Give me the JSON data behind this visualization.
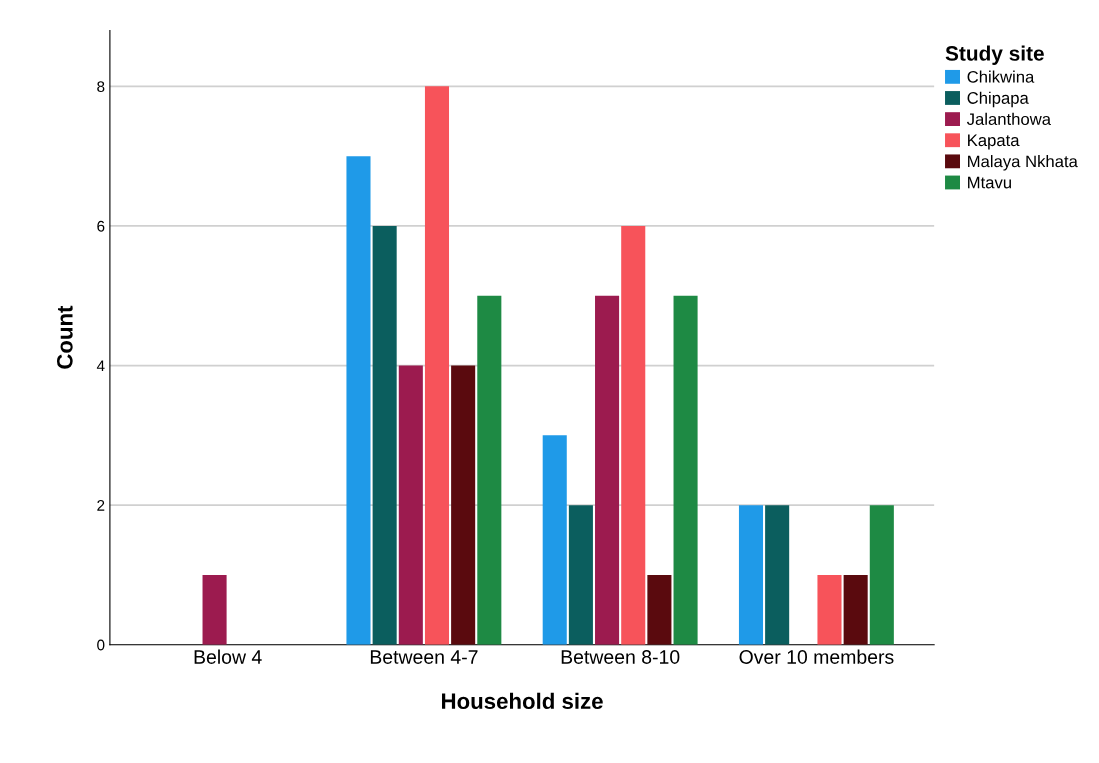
{
  "chart_data": {
    "type": "bar",
    "xlabel": "Household size",
    "ylabel": "Count",
    "legend_title": "Study site",
    "categories": [
      "Below 4",
      "Between 4-7",
      "Between 8-10",
      "Over 10 members"
    ],
    "series": [
      {
        "name": "Chikwina",
        "color": "#1f9ae8",
        "values": [
          0,
          7,
          3,
          2
        ]
      },
      {
        "name": "Chipapa",
        "color": "#0b5e5e",
        "values": [
          0,
          6,
          2,
          2
        ]
      },
      {
        "name": "Jalanthowa",
        "color": "#9c1b4f",
        "values": [
          1,
          4,
          5,
          0
        ]
      },
      {
        "name": "Kapata",
        "color": "#f7535a",
        "values": [
          0,
          8,
          6,
          1
        ]
      },
      {
        "name": "Malaya Nkhata",
        "color": "#5a0a0e",
        "values": [
          0,
          4,
          1,
          1
        ]
      },
      {
        "name": "Mtavu",
        "color": "#1e8a44",
        "values": [
          0,
          5,
          5,
          2
        ]
      }
    ],
    "ylim": [
      0,
      8.8
    ],
    "yticks": [
      0,
      2,
      4,
      6,
      8
    ],
    "grid": "y",
    "legend": "top right"
  }
}
